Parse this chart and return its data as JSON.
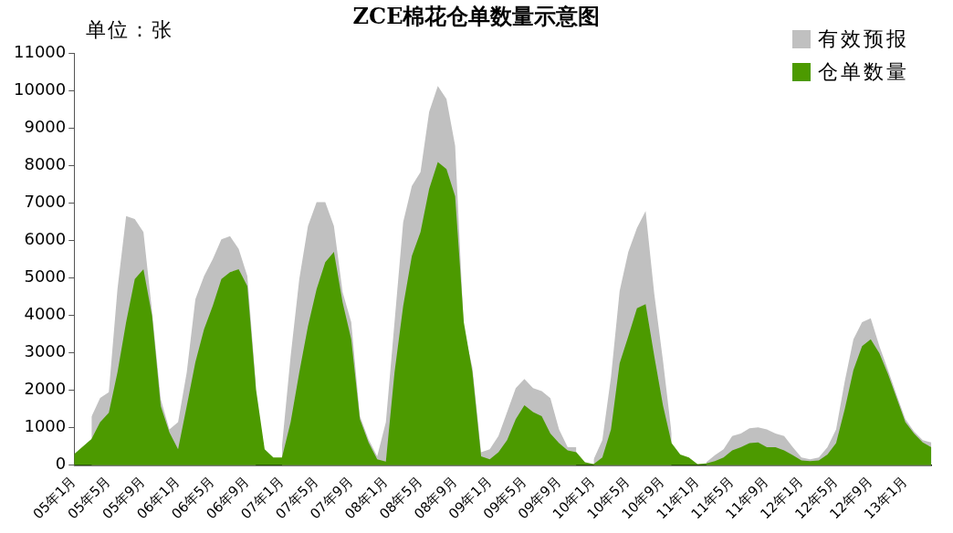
{
  "chart_data": {
    "type": "area",
    "title": "ZCE棉花仓单数量示意图",
    "ylabel": "单位：张",
    "categories": [
      "05年1月",
      null,
      null,
      null,
      "05年5月",
      null,
      null,
      null,
      "05年9月",
      null,
      null,
      null,
      "06年1月",
      null,
      null,
      null,
      "06年5月",
      null,
      null,
      null,
      "06年9月",
      null,
      null,
      null,
      "07年1月",
      null,
      null,
      null,
      "07年5月",
      null,
      null,
      null,
      "07年9月",
      null,
      null,
      null,
      "08年1月",
      null,
      null,
      null,
      "08年5月",
      null,
      null,
      null,
      "08年9月",
      null,
      null,
      null,
      "09年1月",
      null,
      null,
      null,
      "09年5月",
      null,
      null,
      null,
      "09年9月",
      null,
      null,
      null,
      "10年1月",
      null,
      null,
      null,
      "10年5月",
      null,
      null,
      null,
      "10年9月",
      null,
      null,
      null,
      "11年1月",
      null,
      null,
      null,
      "11年5月",
      null,
      null,
      null,
      "11年9月",
      null,
      null,
      null,
      "12年1月",
      null,
      null,
      null,
      "12年5月",
      null,
      null,
      null,
      "12年9月",
      null,
      null,
      null,
      "13年1月",
      null,
      null,
      null
    ],
    "series": [
      {
        "name": "有效预报",
        "color": "#c0c0c0",
        "values": [
          null,
          null,
          1300,
          1800,
          1950,
          4700,
          6650,
          6570,
          6220,
          4090,
          1760,
          960,
          1150,
          2480,
          4430,
          5050,
          5500,
          6030,
          6110,
          5770,
          5050,
          2110,
          null,
          null,
          510,
          2910,
          4970,
          6380,
          7020,
          7020,
          6380,
          4620,
          3820,
          1310,
          690,
          240,
          1150,
          3820,
          6490,
          7450,
          7820,
          9430,
          10120,
          9770,
          8520,
          3630,
          2600,
          350,
          430,
          780,
          1420,
          2060,
          2300,
          2060,
          1980,
          1790,
          960,
          480,
          480,
          null,
          160,
          670,
          2350,
          4650,
          5690,
          6330,
          6780,
          4570,
          2800,
          850,
          null,
          null,
          null,
          80,
          270,
          430,
          780,
          850,
          990,
          1010,
          960,
          850,
          780,
          480,
          210,
          160,
          210,
          480,
          960,
          2240,
          3360,
          3820,
          3920,
          3180,
          2540,
          1870,
          1230,
          900,
          670,
          610
        ]
      },
      {
        "name": "仓单数量",
        "color": "#4c9a00",
        "values": [
          300,
          500,
          700,
          1150,
          1400,
          2480,
          3820,
          4970,
          5230,
          3980,
          1580,
          880,
          430,
          1580,
          2750,
          3630,
          4250,
          4970,
          5150,
          5230,
          4780,
          2030,
          430,
          210,
          210,
          1150,
          2480,
          3710,
          4700,
          5420,
          5690,
          4350,
          3360,
          1230,
          610,
          160,
          100,
          2480,
          4250,
          5580,
          6220,
          7370,
          8090,
          7900,
          7180,
          3820,
          2480,
          240,
          160,
          350,
          670,
          1230,
          1600,
          1420,
          1310,
          850,
          590,
          400,
          350,
          80,
          30,
          210,
          960,
          2720,
          3440,
          4190,
          4300,
          2910,
          1600,
          590,
          290,
          210,
          30,
          50,
          110,
          210,
          400,
          480,
          590,
          610,
          480,
          480,
          400,
          270,
          130,
          110,
          130,
          290,
          590,
          1500,
          2540,
          3180,
          3360,
          2990,
          2430,
          1790,
          1150,
          850,
          610,
          480
        ]
      }
    ],
    "ylim": [
      0,
      11000
    ],
    "yticks": [
      0,
      1000,
      2000,
      3000,
      4000,
      5000,
      6000,
      7000,
      8000,
      9000,
      10000,
      11000
    ],
    "grid": false,
    "legend": "top right"
  }
}
